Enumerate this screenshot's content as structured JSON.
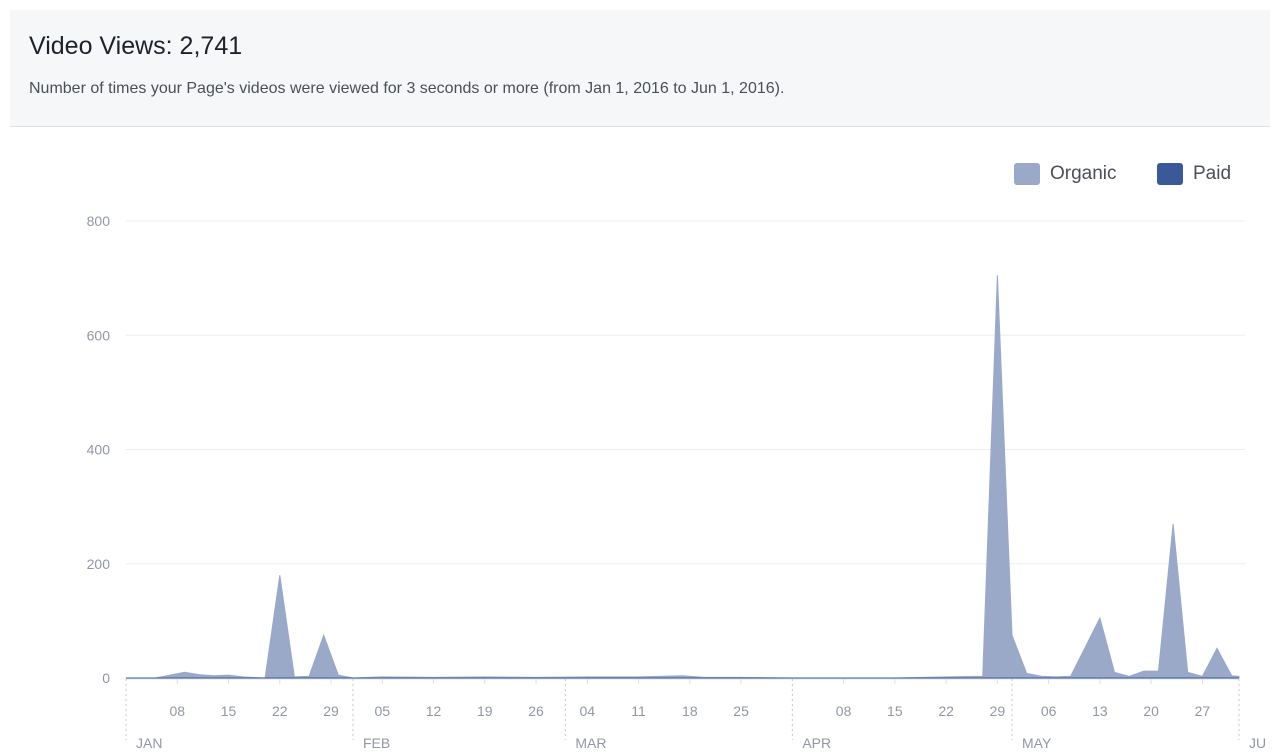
{
  "header": {
    "title": "Video Views: 2,741",
    "subtitle": "Number of times your Page's videos were viewed for 3 seconds or more (from Jan 1, 2016 to Jun 1, 2016)."
  },
  "chart_data": {
    "type": "area",
    "title": "",
    "xlabel": "",
    "ylabel": "",
    "ylim": [
      0,
      800
    ],
    "yticks": [
      0,
      200,
      400,
      600,
      800
    ],
    "grid": true,
    "legend_position": "top-right",
    "legend": [
      {
        "name": "Organic",
        "color": "#9ba9c9"
      },
      {
        "name": "Paid",
        "color": "#3b5998"
      }
    ],
    "x_start": "2016-01-01",
    "x_end": "2016-06-01",
    "x_tick_labels": [
      {
        "date": "2016-01-08",
        "label": "08"
      },
      {
        "date": "2016-01-15",
        "label": "15"
      },
      {
        "date": "2016-01-22",
        "label": "22"
      },
      {
        "date": "2016-01-29",
        "label": "29"
      },
      {
        "date": "2016-02-05",
        "label": "05"
      },
      {
        "date": "2016-02-12",
        "label": "12"
      },
      {
        "date": "2016-02-19",
        "label": "19"
      },
      {
        "date": "2016-02-26",
        "label": "26"
      },
      {
        "date": "2016-03-04",
        "label": "04"
      },
      {
        "date": "2016-03-11",
        "label": "11"
      },
      {
        "date": "2016-03-18",
        "label": "18"
      },
      {
        "date": "2016-03-25",
        "label": "25"
      },
      {
        "date": "2016-04-08",
        "label": "08"
      },
      {
        "date": "2016-04-15",
        "label": "15"
      },
      {
        "date": "2016-04-22",
        "label": "22"
      },
      {
        "date": "2016-04-29",
        "label": "29"
      },
      {
        "date": "2016-05-06",
        "label": "06"
      },
      {
        "date": "2016-05-13",
        "label": "13"
      },
      {
        "date": "2016-05-20",
        "label": "20"
      },
      {
        "date": "2016-05-27",
        "label": "27"
      }
    ],
    "month_labels": [
      {
        "date": "2016-01-01",
        "label": "JAN"
      },
      {
        "date": "2016-02-01",
        "label": "FEB"
      },
      {
        "date": "2016-03-01",
        "label": "MAR"
      },
      {
        "date": "2016-04-01",
        "label": "APR"
      },
      {
        "date": "2016-05-01",
        "label": "MAY"
      },
      {
        "date": "2016-06-01",
        "label": "JU"
      }
    ],
    "series": [
      {
        "name": "Organic",
        "color": "#9ba9c9",
        "points": [
          [
            "2016-01-01",
            0
          ],
          [
            "2016-01-05",
            0
          ],
          [
            "2016-01-09",
            10
          ],
          [
            "2016-01-11",
            6
          ],
          [
            "2016-01-13",
            4
          ],
          [
            "2016-01-15",
            5
          ],
          [
            "2016-01-17",
            2
          ],
          [
            "2016-01-20",
            0
          ],
          [
            "2016-01-22",
            180
          ],
          [
            "2016-01-24",
            2
          ],
          [
            "2016-01-26",
            3
          ],
          [
            "2016-01-28",
            75
          ],
          [
            "2016-01-30",
            5
          ],
          [
            "2016-02-01",
            0
          ],
          [
            "2016-02-05",
            2
          ],
          [
            "2016-02-12",
            1
          ],
          [
            "2016-02-19",
            2
          ],
          [
            "2016-02-26",
            1
          ],
          [
            "2016-03-04",
            2
          ],
          [
            "2016-03-11",
            2
          ],
          [
            "2016-03-17",
            4
          ],
          [
            "2016-03-20",
            1
          ],
          [
            "2016-03-25",
            1
          ],
          [
            "2016-04-01",
            0
          ],
          [
            "2016-04-08",
            0
          ],
          [
            "2016-04-15",
            0
          ],
          [
            "2016-04-22",
            2
          ],
          [
            "2016-04-27",
            3
          ],
          [
            "2016-04-29",
            705
          ],
          [
            "2016-05-01",
            75
          ],
          [
            "2016-05-03",
            8
          ],
          [
            "2016-05-05",
            3
          ],
          [
            "2016-05-07",
            2
          ],
          [
            "2016-05-09",
            3
          ],
          [
            "2016-05-13",
            105
          ],
          [
            "2016-05-15",
            10
          ],
          [
            "2016-05-17",
            3
          ],
          [
            "2016-05-19",
            12
          ],
          [
            "2016-05-21",
            12
          ],
          [
            "2016-05-23",
            270
          ],
          [
            "2016-05-25",
            10
          ],
          [
            "2016-05-27",
            3
          ],
          [
            "2016-05-29",
            52
          ],
          [
            "2016-05-31",
            4
          ],
          [
            "2016-06-01",
            3
          ]
        ]
      },
      {
        "name": "Paid",
        "color": "#3b5998",
        "points": [
          [
            "2016-01-01",
            0
          ],
          [
            "2016-06-01",
            0
          ]
        ]
      }
    ]
  }
}
